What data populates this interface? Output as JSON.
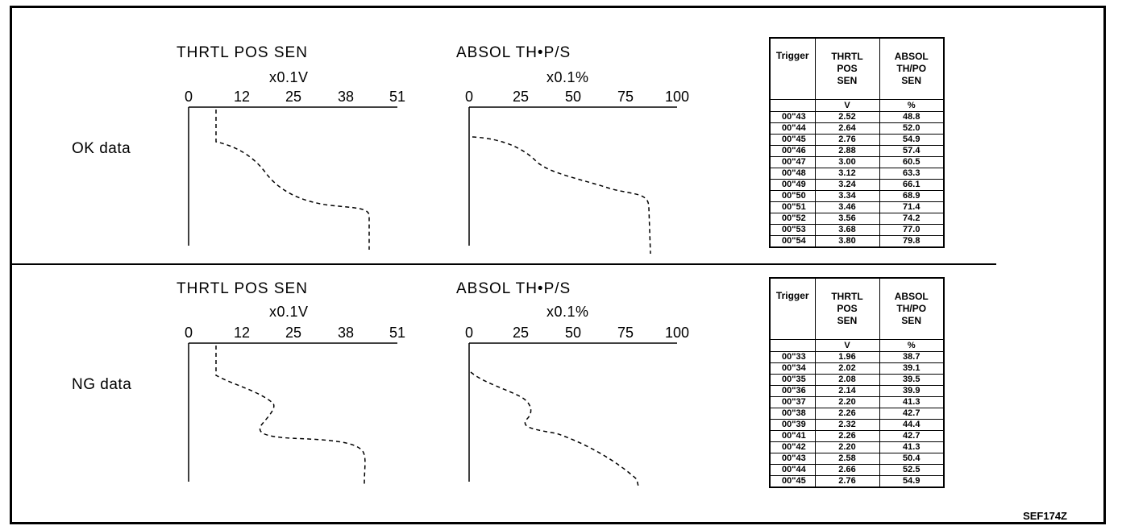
{
  "figure_code": "SEF174Z",
  "panels": [
    {
      "label": "OK data",
      "throttle_chart": {
        "title": "THRTL POS SEN",
        "unit": "x0.1V",
        "ticks": [
          "0",
          "12",
          "25",
          "38",
          "51"
        ]
      },
      "absol_chart": {
        "title": "ABSOL TH•P/S",
        "unit": "x0.1%",
        "ticks": [
          "0",
          "25",
          "50",
          "75",
          "100"
        ]
      },
      "table": {
        "headers": {
          "trigger": "Trigger",
          "thrtl": [
            "THRTL",
            "POS",
            "SEN"
          ],
          "absol": [
            "ABSOL",
            "TH/PO",
            "SEN"
          ]
        },
        "units": {
          "thrtl": "V",
          "absol": "%"
        },
        "rows": [
          {
            "trigger": "00\"43",
            "thrtl": "2.52",
            "absol": "48.8"
          },
          {
            "trigger": "00\"44",
            "thrtl": "2.64",
            "absol": "52.0"
          },
          {
            "trigger": "00\"45",
            "thrtl": "2.76",
            "absol": "54.9"
          },
          {
            "trigger": "00\"46",
            "thrtl": "2.88",
            "absol": "57.4"
          },
          {
            "trigger": "00\"47",
            "thrtl": "3.00",
            "absol": "60.5"
          },
          {
            "trigger": "00\"48",
            "thrtl": "3.12",
            "absol": "63.3"
          },
          {
            "trigger": "00\"49",
            "thrtl": "3.24",
            "absol": "66.1"
          },
          {
            "trigger": "00\"50",
            "thrtl": "3.34",
            "absol": "68.9"
          },
          {
            "trigger": "00\"51",
            "thrtl": "3.46",
            "absol": "71.4"
          },
          {
            "trigger": "00\"52",
            "thrtl": "3.56",
            "absol": "74.2"
          },
          {
            "trigger": "00\"53",
            "thrtl": "3.68",
            "absol": "77.0"
          },
          {
            "trigger": "00\"54",
            "thrtl": "3.80",
            "absol": "79.8"
          }
        ]
      }
    },
    {
      "label": "NG data",
      "throttle_chart": {
        "title": "THRTL POS SEN",
        "unit": "x0.1V",
        "ticks": [
          "0",
          "12",
          "25",
          "38",
          "51"
        ]
      },
      "absol_chart": {
        "title": "ABSOL TH•P/S",
        "unit": "x0.1%",
        "ticks": [
          "0",
          "25",
          "50",
          "75",
          "100"
        ]
      },
      "table": {
        "headers": {
          "trigger": "Trigger",
          "thrtl": [
            "THRTL",
            "POS",
            "SEN"
          ],
          "absol": [
            "ABSOL",
            "TH/PO",
            "SEN"
          ]
        },
        "units": {
          "thrtl": "V",
          "absol": "%"
        },
        "rows": [
          {
            "trigger": "00\"33",
            "thrtl": "1.96",
            "absol": "38.7"
          },
          {
            "trigger": "00\"34",
            "thrtl": "2.02",
            "absol": "39.1"
          },
          {
            "trigger": "00\"35",
            "thrtl": "2.08",
            "absol": "39.5"
          },
          {
            "trigger": "00\"36",
            "thrtl": "2.14",
            "absol": "39.9"
          },
          {
            "trigger": "00\"37",
            "thrtl": "2.20",
            "absol": "41.3"
          },
          {
            "trigger": "00\"38",
            "thrtl": "2.26",
            "absol": "42.7"
          },
          {
            "trigger": "00\"39",
            "thrtl": "2.32",
            "absol": "44.4"
          },
          {
            "trigger": "00\"41",
            "thrtl": "2.26",
            "absol": "42.7"
          },
          {
            "trigger": "00\"42",
            "thrtl": "2.20",
            "absol": "41.3"
          },
          {
            "trigger": "00\"43",
            "thrtl": "2.58",
            "absol": "50.4"
          },
          {
            "trigger": "00\"44",
            "thrtl": "2.66",
            "absol": "52.5"
          },
          {
            "trigger": "00\"45",
            "thrtl": "2.76",
            "absol": "54.9"
          }
        ]
      }
    }
  ]
}
